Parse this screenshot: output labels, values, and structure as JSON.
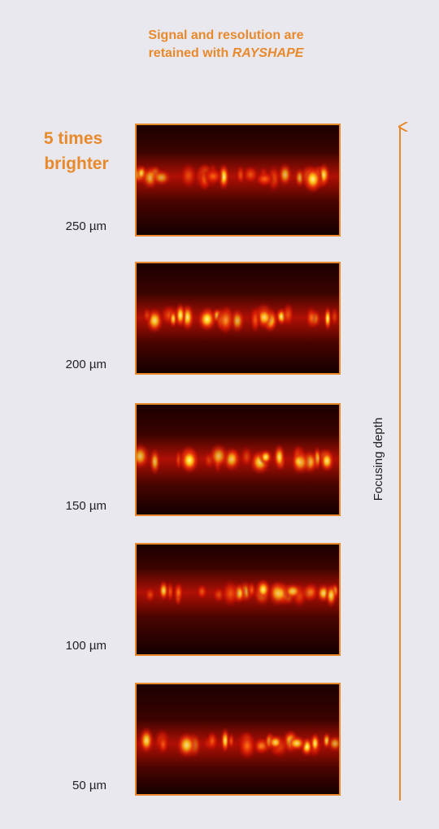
{
  "header": {
    "line1": "Signal and resolution are",
    "line2_prefix": "retained with",
    "brand": "RAYSHAPE"
  },
  "highlight": {
    "line1": "5 times",
    "line2": "brighter"
  },
  "panels": [
    {
      "depth_label": "250 µm"
    },
    {
      "depth_label": "200 µm"
    },
    {
      "depth_label": "150 µm"
    },
    {
      "depth_label": "100 µm"
    },
    {
      "depth_label": "50 µm"
    }
  ],
  "axis": {
    "label": "Focusing depth"
  }
}
